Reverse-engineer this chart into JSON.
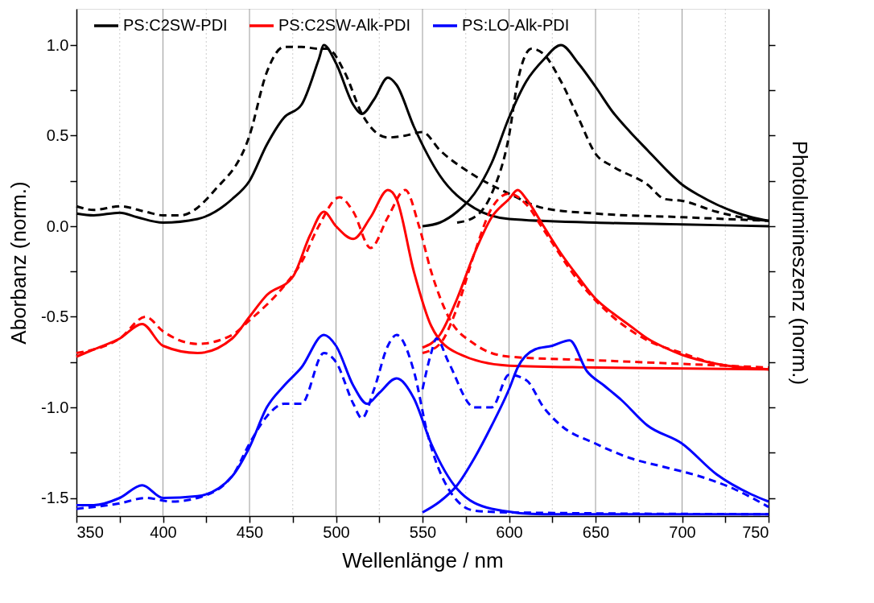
{
  "chart_data": {
    "type": "line",
    "xlabel": "Wellenlänge / nm",
    "ylabel": "Aborbanz (norm.)",
    "y2label": "Photolumineszenz (norm.)",
    "xlim": [
      350,
      750
    ],
    "ylim": [
      -1.6,
      1.2
    ],
    "xticks": [
      350,
      {
        "value": 375,
        "label": null
      },
      400,
      {
        "value": 425,
        "label": null
      },
      450,
      {
        "value": 475,
        "label": null
      },
      500,
      {
        "value": 525,
        "label": null
      },
      550,
      {
        "value": 575,
        "label": null
      },
      600,
      {
        "value": 625,
        "label": null
      },
      650,
      {
        "value": 675,
        "label": null
      },
      700,
      {
        "value": 725,
        "label": null
      },
      750
    ],
    "yticks": [
      {
        "value": -1.5,
        "label": "-1.5"
      },
      {
        "value": -1.25,
        "label": null
      },
      {
        "value": -1.0,
        "label": "-1.0"
      },
      {
        "value": -0.75,
        "label": null
      },
      {
        "value": -0.5,
        "label": "-0.5"
      },
      {
        "value": -0.25,
        "label": null
      },
      {
        "value": 0,
        "label": "0.0"
      },
      {
        "value": 0.25,
        "label": null
      },
      {
        "value": 0.5,
        "label": "0.5"
      },
      {
        "value": 0.75,
        "label": null
      },
      {
        "value": 1.0,
        "label": "1.0"
      }
    ],
    "grid": "x",
    "legend": "top",
    "marker": "none",
    "series": [
      {
        "name": "PS:C2SW-PDI",
        "color": "#000000",
        "line_style": "solid",
        "x": [
          350,
          360,
          375,
          385,
          400,
          420,
          440,
          450,
          460,
          470,
          480,
          490,
          493,
          500,
          510,
          515,
          522,
          530,
          535,
          545,
          560,
          580,
          600,
          650,
          700,
          750
        ],
        "values": [
          0.07,
          0.06,
          0.075,
          0.05,
          0.02,
          0.04,
          0.15,
          0.25,
          0.45,
          0.6,
          0.67,
          0.92,
          1.0,
          0.9,
          0.67,
          0.62,
          0.7,
          0.82,
          0.78,
          0.55,
          0.28,
          0.1,
          0.04,
          0.02,
          0.01,
          0.0
        ]
      },
      {
        "color": "#000000",
        "line_style": "dashed",
        "x": [
          350,
          360,
          375,
          390,
          400,
          410,
          430,
          450,
          460,
          470,
          480,
          490,
          495,
          505,
          515,
          530,
          540,
          550,
          560,
          580,
          600,
          620,
          650,
          700,
          750
        ],
        "values": [
          0.11,
          0.09,
          0.11,
          0.08,
          0.06,
          0.06,
          0.2,
          0.5,
          0.85,
          0.99,
          0.99,
          0.98,
          0.98,
          0.85,
          0.62,
          0.49,
          0.5,
          0.52,
          0.42,
          0.28,
          0.18,
          0.1,
          0.07,
          0.05,
          0.03
        ]
      },
      {
        "color": "#000000",
        "line_style": "solid",
        "x": [
          550,
          560,
          570,
          580,
          590,
          600,
          610,
          620,
          630,
          640,
          650,
          660,
          670,
          680,
          690,
          700,
          710,
          720,
          730,
          740,
          750
        ],
        "values": [
          0.0,
          0.02,
          0.08,
          0.18,
          0.35,
          0.6,
          0.8,
          0.92,
          1.0,
          0.9,
          0.77,
          0.63,
          0.52,
          0.42,
          0.32,
          0.23,
          0.17,
          0.12,
          0.08,
          0.05,
          0.03
        ]
      },
      {
        "color": "#000000",
        "line_style": "dashed",
        "x": [
          570,
          580,
          590,
          600,
          605,
          613,
          620,
          630,
          640,
          650,
          660,
          680,
          690,
          700,
          720,
          740,
          750
        ],
        "values": [
          0.02,
          0.05,
          0.18,
          0.5,
          0.8,
          0.98,
          0.95,
          0.8,
          0.6,
          0.4,
          0.33,
          0.23,
          0.15,
          0.14,
          0.08,
          0.04,
          0.03
        ]
      },
      {
        "name": "PS:C2SW-Alk-PDI",
        "color": "#ff0000",
        "line_style": "solid",
        "x": [
          350,
          360,
          375,
          388,
          400,
          420,
          440,
          450,
          460,
          475,
          485,
          493,
          500,
          510,
          520,
          530,
          535,
          545,
          555,
          570,
          600,
          650,
          750
        ],
        "values": [
          -0.72,
          -0.68,
          -0.62,
          -0.54,
          -0.66,
          -0.7,
          -0.62,
          -0.5,
          -0.38,
          -0.28,
          -0.05,
          0.08,
          0.0,
          -0.07,
          0.05,
          0.2,
          0.15,
          -0.25,
          -0.55,
          -0.7,
          -0.77,
          -0.78,
          -0.79
        ]
      },
      {
        "color": "#ff0000",
        "line_style": "dashed",
        "x": [
          350,
          375,
          390,
          400,
          420,
          440,
          450,
          470,
          480,
          490,
          502,
          510,
          520,
          530,
          540,
          548,
          555,
          565,
          580,
          600,
          650,
          700,
          750
        ],
        "values": [
          -0.7,
          -0.62,
          -0.5,
          -0.58,
          -0.65,
          -0.6,
          -0.52,
          -0.33,
          -0.2,
          0.0,
          0.16,
          0.08,
          -0.12,
          0.05,
          0.2,
          0.0,
          -0.25,
          -0.5,
          -0.65,
          -0.72,
          -0.74,
          -0.76,
          -0.78
        ]
      },
      {
        "color": "#ff0000",
        "line_style": "solid",
        "x": [
          550,
          560,
          570,
          580,
          590,
          600,
          605,
          610,
          620,
          630,
          640,
          650,
          660,
          670,
          680,
          690,
          700,
          720,
          750
        ],
        "values": [
          -0.67,
          -0.6,
          -0.4,
          -0.15,
          0.05,
          0.15,
          0.2,
          0.15,
          0.0,
          -0.15,
          -0.28,
          -0.4,
          -0.48,
          -0.55,
          -0.62,
          -0.67,
          -0.71,
          -0.76,
          -0.79
        ]
      },
      {
        "color": "#ff0000",
        "line_style": "dashed",
        "x": [
          550,
          560,
          570,
          580,
          590,
          600,
          610,
          620,
          640,
          660,
          680,
          700,
          720,
          750
        ],
        "values": [
          -0.7,
          -0.65,
          -0.45,
          -0.15,
          0.1,
          0.18,
          0.12,
          -0.02,
          -0.3,
          -0.5,
          -0.63,
          -0.7,
          -0.76,
          -0.79
        ]
      },
      {
        "name": "PS:LO-Alk-PDI",
        "color": "#0000ff",
        "line_style": "solid",
        "x": [
          350,
          360,
          375,
          388,
          400,
          420,
          440,
          450,
          460,
          470,
          480,
          493,
          500,
          510,
          518,
          525,
          535,
          545,
          555,
          570,
          590,
          620,
          750
        ],
        "values": [
          -1.54,
          -1.54,
          -1.5,
          -1.43,
          -1.5,
          -1.49,
          -1.38,
          -1.22,
          -1.0,
          -0.88,
          -0.78,
          -0.6,
          -0.66,
          -0.88,
          -0.98,
          -0.92,
          -0.84,
          -0.95,
          -1.2,
          -1.45,
          -1.56,
          -1.59,
          -1.59
        ]
      },
      {
        "color": "#0000ff",
        "line_style": "dashed",
        "x": [
          350,
          375,
          390,
          405,
          420,
          440,
          450,
          460,
          470,
          480,
          493,
          500,
          510,
          515,
          522,
          530,
          535,
          545,
          553,
          565,
          580,
          600,
          750
        ],
        "values": [
          -1.56,
          -1.53,
          -1.5,
          -1.52,
          -1.5,
          -1.38,
          -1.2,
          -1.05,
          -0.98,
          -0.98,
          -0.7,
          -0.75,
          -0.98,
          -1.06,
          -0.9,
          -0.66,
          -0.6,
          -0.8,
          -1.15,
          -1.45,
          -1.57,
          -1.58,
          -1.59
        ]
      },
      {
        "color": "#0000ff",
        "line_style": "solid",
        "x": [
          550,
          560,
          570,
          580,
          590,
          600,
          605,
          615,
          625,
          635,
          645,
          655,
          665,
          680,
          700,
          720,
          740,
          750
        ],
        "values": [
          -1.58,
          -1.52,
          -1.43,
          -1.28,
          -1.1,
          -0.9,
          -0.78,
          -0.68,
          -0.66,
          -0.63,
          -0.8,
          -0.88,
          -0.96,
          -1.1,
          -1.2,
          -1.37,
          -1.48,
          -1.52
        ]
      },
      {
        "color": "#0000ff",
        "line_style": "dashed",
        "x": [
          550,
          555,
          558,
          565,
          580,
          590,
          600,
          610,
          620,
          630,
          650,
          670,
          690,
          710,
          730,
          750
        ],
        "values": [
          -0.9,
          -0.7,
          -0.62,
          -0.75,
          -1.0,
          -1.0,
          -0.82,
          -0.85,
          -1.0,
          -1.1,
          -1.2,
          -1.28,
          -1.33,
          -1.38,
          -1.45,
          -1.55
        ]
      }
    ]
  }
}
